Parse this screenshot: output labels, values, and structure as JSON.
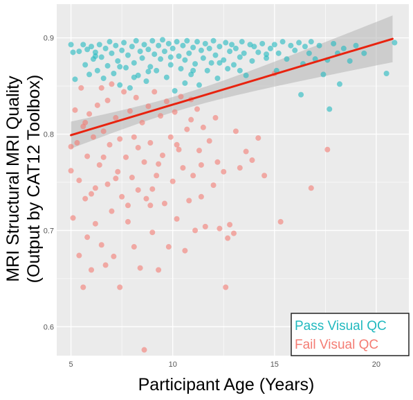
{
  "chart_data": {
    "type": "scatter",
    "xlabel": "Participant Age (Years)",
    "ylabel_line1": "MRI Structural MRI Quality",
    "ylabel_line2": "(Output by CAT12 Toolbox)",
    "xlim": [
      4.3,
      21.6
    ],
    "ylim": [
      0.57,
      0.935
    ],
    "x_ticks": [
      5,
      10,
      15,
      20
    ],
    "y_ticks": [
      0.6,
      0.7,
      0.8,
      0.9
    ],
    "x_tick_labels": [
      "5",
      "10",
      "15",
      "20"
    ],
    "y_tick_labels": [
      "0.6",
      "0.7",
      "0.8",
      "0.9"
    ],
    "grid": true,
    "legend_position": "bottom-right",
    "colors": {
      "pass": "#21b9bf",
      "fail": "#f47c73",
      "fit_line": "#e8230f",
      "confidence_band": "#b4b4b4",
      "panel_background": "#ebebeb",
      "grid": "#ffffff"
    },
    "fit_line": {
      "x": [
        5.0,
        20.8
      ],
      "y": [
        0.799,
        0.899
      ]
    },
    "series": [
      {
        "name": "Pass Visual QC",
        "points": [
          [
            5.0,
            0.893
          ],
          [
            5.1,
            0.885
          ],
          [
            5.2,
            0.857
          ],
          [
            5.4,
            0.886
          ],
          [
            5.6,
            0.893
          ],
          [
            5.7,
            0.872
          ],
          [
            5.8,
            0.888
          ],
          [
            5.9,
            0.862
          ],
          [
            6.0,
            0.891
          ],
          [
            6.1,
            0.878
          ],
          [
            6.2,
            0.885
          ],
          [
            6.3,
            0.866
          ],
          [
            6.4,
            0.893
          ],
          [
            6.5,
            0.88
          ],
          [
            6.6,
            0.858
          ],
          [
            6.7,
            0.889
          ],
          [
            6.8,
            0.871
          ],
          [
            6.9,
            0.896
          ],
          [
            7.0,
            0.884
          ],
          [
            7.1,
            0.863
          ],
          [
            7.2,
            0.892
          ],
          [
            7.3,
            0.876
          ],
          [
            7.4,
            0.851
          ],
          [
            7.5,
            0.887
          ],
          [
            7.6,
            0.895
          ],
          [
            7.7,
            0.869
          ],
          [
            7.8,
            0.882
          ],
          [
            7.9,
            0.848
          ],
          [
            8.0,
            0.891
          ],
          [
            8.1,
            0.874
          ],
          [
            8.2,
            0.897
          ],
          [
            8.3,
            0.861
          ],
          [
            8.4,
            0.886
          ],
          [
            8.5,
            0.879
          ],
          [
            8.6,
            0.893
          ],
          [
            8.7,
            0.855
          ],
          [
            8.8,
            0.888
          ],
          [
            8.9,
            0.87
          ],
          [
            9.0,
            0.897
          ],
          [
            9.1,
            0.883
          ],
          [
            9.2,
            0.866
          ],
          [
            9.3,
            0.892
          ],
          [
            9.4,
            0.878
          ],
          [
            9.5,
            0.898
          ],
          [
            9.6,
            0.886
          ],
          [
            9.7,
            0.859
          ],
          [
            9.8,
            0.894
          ],
          [
            9.9,
            0.872
          ],
          [
            10.0,
            0.889
          ],
          [
            10.1,
            0.845
          ],
          [
            10.2,
            0.896
          ],
          [
            10.3,
            0.881
          ],
          [
            10.4,
            0.868
          ],
          [
            10.5,
            0.892
          ],
          [
            10.6,
            0.877
          ],
          [
            10.7,
            0.897
          ],
          [
            10.8,
            0.884
          ],
          [
            10.9,
            0.862
          ],
          [
            11.0,
            0.89
          ],
          [
            11.1,
            0.873
          ],
          [
            11.2,
            0.896
          ],
          [
            11.3,
            0.851
          ],
          [
            11.4,
            0.887
          ],
          [
            11.5,
            0.879
          ],
          [
            11.6,
            0.894
          ],
          [
            11.7,
            0.866
          ],
          [
            11.8,
            0.889
          ],
          [
            11.9,
            0.874
          ],
          [
            12.0,
            0.897
          ],
          [
            12.1,
            0.882
          ],
          [
            12.2,
            0.858
          ],
          [
            12.3,
            0.891
          ],
          [
            12.5,
            0.877
          ],
          [
            12.6,
            0.895
          ],
          [
            12.7,
            0.868
          ],
          [
            12.8,
            0.886
          ],
          [
            12.9,
            0.893
          ],
          [
            13.0,
            0.872
          ],
          [
            13.1,
            0.889
          ],
          [
            13.3,
            0.88
          ],
          [
            13.4,
            0.896
          ],
          [
            13.5,
            0.884
          ],
          [
            13.6,
            0.861
          ],
          [
            13.8,
            0.893
          ],
          [
            13.9,
            0.876
          ],
          [
            14.0,
            0.891
          ],
          [
            14.2,
            0.885
          ],
          [
            14.4,
            0.894
          ],
          [
            14.6,
            0.879
          ],
          [
            14.8,
            0.889
          ],
          [
            15.0,
            0.893
          ],
          [
            15.1,
            0.866
          ],
          [
            15.2,
            0.884
          ],
          [
            15.4,
            0.896
          ],
          [
            15.6,
            0.878
          ],
          [
            15.8,
            0.892
          ],
          [
            16.0,
            0.887
          ],
          [
            16.2,
            0.895
          ],
          [
            16.3,
            0.841
          ],
          [
            16.4,
            0.873
          ],
          [
            16.5,
            0.891
          ],
          [
            16.7,
            0.884
          ],
          [
            16.8,
            0.896
          ],
          [
            17.0,
            0.878
          ],
          [
            17.2,
            0.892
          ],
          [
            17.4,
            0.862
          ],
          [
            17.6,
            0.877
          ],
          [
            17.7,
            0.826
          ],
          [
            17.9,
            0.894
          ],
          [
            18.1,
            0.884
          ],
          [
            18.2,
            0.852
          ],
          [
            18.4,
            0.889
          ],
          [
            18.7,
            0.876
          ],
          [
            19.0,
            0.892
          ],
          [
            19.4,
            0.884
          ],
          [
            20.5,
            0.863
          ],
          [
            20.9,
            0.895
          ],
          [
            6.2,
            0.881
          ],
          [
            7.4,
            0.87
          ],
          [
            8.8,
            0.865
          ],
          [
            9.9,
            0.88
          ],
          [
            11.0,
            0.866
          ],
          [
            12.3,
            0.874
          ],
          [
            13.3,
            0.866
          ],
          [
            14.6,
            0.883
          ],
          [
            10.6,
            0.853
          ],
          [
            8.1,
            0.859
          ]
        ]
      },
      {
        "name": "Fail Visual QC",
        "points": [
          [
            5.0,
            0.787
          ],
          [
            5.0,
            0.762
          ],
          [
            5.1,
            0.713
          ],
          [
            5.2,
            0.825
          ],
          [
            5.3,
            0.791
          ],
          [
            5.4,
            0.752
          ],
          [
            5.4,
            0.674
          ],
          [
            5.5,
            0.848
          ],
          [
            5.6,
            0.808
          ],
          [
            5.6,
            0.641
          ],
          [
            5.7,
            0.733
          ],
          [
            5.8,
            0.777
          ],
          [
            5.8,
            0.693
          ],
          [
            5.9,
            0.821
          ],
          [
            6.0,
            0.659
          ],
          [
            6.1,
            0.797
          ],
          [
            6.2,
            0.744
          ],
          [
            6.2,
            0.707
          ],
          [
            6.3,
            0.83
          ],
          [
            6.4,
            0.768
          ],
          [
            6.5,
            0.685
          ],
          [
            6.6,
            0.803
          ],
          [
            6.7,
            0.664
          ],
          [
            6.8,
            0.748
          ],
          [
            6.8,
            0.835
          ],
          [
            6.9,
            0.789
          ],
          [
            7.0,
            0.72
          ],
          [
            7.1,
            0.673
          ],
          [
            7.2,
            0.817
          ],
          [
            7.3,
            0.761
          ],
          [
            7.4,
            0.641
          ],
          [
            7.4,
            0.795
          ],
          [
            7.5,
            0.735
          ],
          [
            7.6,
            0.844
          ],
          [
            7.7,
            0.776
          ],
          [
            7.8,
            0.709
          ],
          [
            7.9,
            0.824
          ],
          [
            8.0,
            0.755
          ],
          [
            8.1,
            0.683
          ],
          [
            8.1,
            0.797
          ],
          [
            8.2,
            0.838
          ],
          [
            8.3,
            0.742
          ],
          [
            8.4,
            0.661
          ],
          [
            8.5,
            0.812
          ],
          [
            8.6,
            0.771
          ],
          [
            8.6,
            0.576
          ],
          [
            8.7,
            0.733
          ],
          [
            8.8,
            0.829
          ],
          [
            8.9,
            0.791
          ],
          [
            9.0,
            0.698
          ],
          [
            9.1,
            0.844
          ],
          [
            9.2,
            0.757
          ],
          [
            9.3,
            0.659
          ],
          [
            9.4,
            0.819
          ],
          [
            9.5,
            0.778
          ],
          [
            9.6,
            0.728
          ],
          [
            9.7,
            0.834
          ],
          [
            9.8,
            0.683
          ],
          [
            9.9,
            0.797
          ],
          [
            10.0,
            0.751
          ],
          [
            10.1,
            0.823
          ],
          [
            10.2,
            0.712
          ],
          [
            10.3,
            0.784
          ],
          [
            10.4,
            0.839
          ],
          [
            10.5,
            0.765
          ],
          [
            10.6,
            0.679
          ],
          [
            10.7,
            0.805
          ],
          [
            10.8,
            0.731
          ],
          [
            10.9,
            0.815
          ],
          [
            11.0,
            0.757
          ],
          [
            11.1,
            0.7
          ],
          [
            11.2,
            0.826
          ],
          [
            11.3,
            0.783
          ],
          [
            11.4,
            0.735
          ],
          [
            11.5,
            0.807
          ],
          [
            11.6,
            0.704
          ],
          [
            11.8,
            0.793
          ],
          [
            12.0,
            0.747
          ],
          [
            12.2,
            0.771
          ],
          [
            12.3,
            0.702
          ],
          [
            12.5,
            0.761
          ],
          [
            12.6,
            0.641
          ],
          [
            12.7,
            0.692
          ],
          [
            12.8,
            0.706
          ],
          [
            13.0,
            0.697
          ],
          [
            13.1,
            0.803
          ],
          [
            13.3,
            0.765
          ],
          [
            13.6,
            0.782
          ],
          [
            13.9,
            0.773
          ],
          [
            14.2,
            0.796
          ],
          [
            14.5,
            0.757
          ],
          [
            15.0,
            0.863
          ],
          [
            15.3,
            0.709
          ],
          [
            16.8,
            0.744
          ],
          [
            17.6,
            0.784
          ],
          [
            5.7,
            0.812
          ],
          [
            6.6,
            0.776
          ],
          [
            7.2,
            0.754
          ],
          [
            8.3,
            0.786
          ],
          [
            9.3,
            0.769
          ],
          [
            10.2,
            0.789
          ],
          [
            11.4,
            0.768
          ],
          [
            6.0,
            0.738
          ],
          [
            7.8,
            0.726
          ],
          [
            9.0,
            0.743
          ],
          [
            8.9,
            0.726
          ],
          [
            6.5,
            0.848
          ],
          [
            7.0,
            0.852
          ],
          [
            10.9,
            0.836
          ],
          [
            12.1,
            0.817
          ]
        ]
      }
    ]
  }
}
